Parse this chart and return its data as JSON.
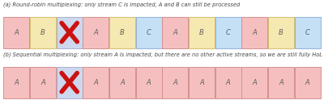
{
  "title_a": "(a) Round-robin multiplexing: only stream C is impacted, A and B can still be processed",
  "title_b": "(b) Sequential multiplexing: only stream A is impacted, but there are no other active streams, so we are still fully HoL blocked",
  "row_a_labels": [
    "A",
    "B",
    "X",
    "A",
    "B",
    "C",
    "A",
    "B",
    "C",
    "A",
    "B",
    "C"
  ],
  "row_b_labels": [
    "A",
    "A",
    "X",
    "A",
    "A",
    "A",
    "A",
    "A",
    "A",
    "A",
    "A",
    "A"
  ],
  "color_A": "#f5bfbf",
  "color_B": "#f5e8b0",
  "color_C": "#c5dff5",
  "color_X": "#cdd8ee",
  "border_A": "#d49090",
  "border_B": "#d4c070",
  "border_C": "#90b4d8",
  "border_X": "#aab0d0",
  "bg_color": "#ffffff",
  "title_color": "#444444",
  "title_fontsize": 4.8,
  "label_fontsize": 6.0,
  "x_color": "#cc1111",
  "n_cells": 12
}
